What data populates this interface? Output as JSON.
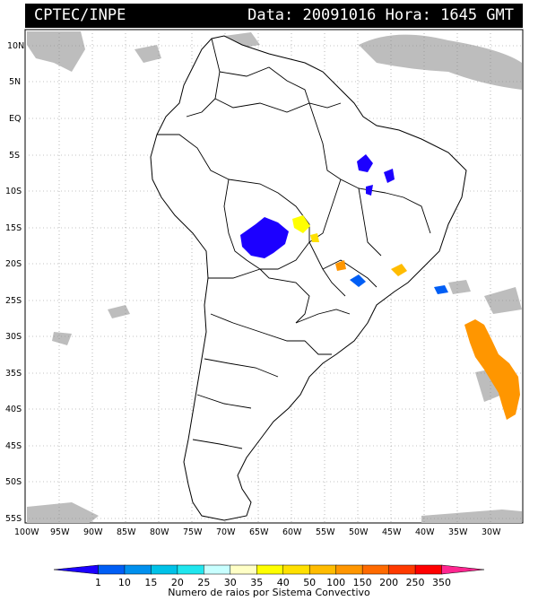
{
  "header": {
    "source": "CPTEC/INPE",
    "date_label": "Data:",
    "date": "20091016",
    "time_label": "Hora:",
    "time": "1645 GMT"
  },
  "map": {
    "lat_labels": [
      "10N",
      "5N",
      "EQ",
      "5S",
      "10S",
      "15S",
      "20S",
      "25S",
      "30S",
      "35S",
      "40S",
      "45S",
      "50S",
      "55S"
    ],
    "lon_labels": [
      "100W",
      "95W",
      "90W",
      "85W",
      "80W",
      "75W",
      "70W",
      "65W",
      "60W",
      "55W",
      "50W",
      "45W",
      "40W",
      "35W",
      "30W"
    ],
    "colors": {
      "background": "#ffffff",
      "land_border": "#000000",
      "cloud": "#bdbdbd",
      "grid": "#888888"
    }
  },
  "colorbar": {
    "ticks": [
      "1",
      "10",
      "15",
      "20",
      "25",
      "30",
      "35",
      "40",
      "50",
      "100",
      "150",
      "200",
      "250",
      "350"
    ],
    "colors": [
      "#1c00ff",
      "#005ef5",
      "#0090ee",
      "#00c2e8",
      "#20e6ee",
      "#c8ffff",
      "#ffffc6",
      "#ffff00",
      "#ffe000",
      "#ffbc00",
      "#ff9600",
      "#ff6a00",
      "#ff3a00",
      "#ff0000",
      "#ff2690"
    ],
    "caption": "Numero de raios por Sistema Convectivo"
  }
}
